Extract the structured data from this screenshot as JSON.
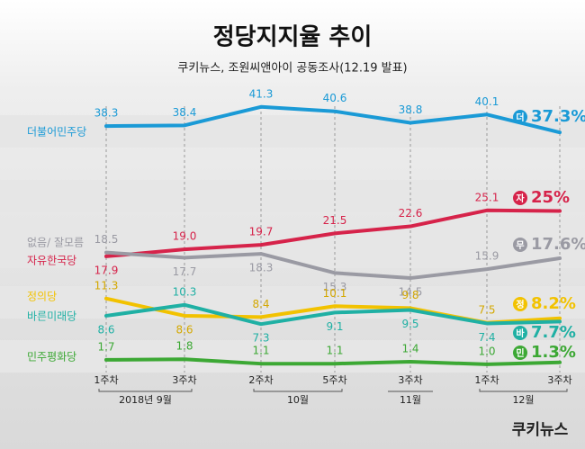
{
  "chart_data": {
    "type": "line",
    "title": "정당지지율 추이",
    "subtitle": "쿠키뉴스, 조원씨앤아이 공동조사(12.19 발표)",
    "categories": [
      "1주차",
      "3주차",
      "2주차",
      "5주차",
      "3주차",
      "1주차",
      "3주차"
    ],
    "months": [
      "2018년 9월",
      "10월",
      "11월",
      "12월"
    ],
    "ylim": [
      0,
      45
    ],
    "series": [
      {
        "name": "더불어민주당",
        "badge": "더",
        "color": "#1a9ad6",
        "values": [
          38.3,
          38.4,
          41.3,
          40.6,
          38.8,
          40.1,
          37.3
        ],
        "value_labels": [
          "38.3",
          "38.4",
          "41.3",
          "40.6",
          "38.8",
          "40.1",
          "37.3%"
        ]
      },
      {
        "name": "자유한국당",
        "badge": "자",
        "color": "#d6234a",
        "values": [
          17.9,
          19.0,
          19.7,
          21.5,
          22.6,
          25.1,
          25
        ],
        "value_labels": [
          "17.9",
          "19.0",
          "19.7",
          "21.5",
          "22.6",
          "25.1",
          "25%"
        ]
      },
      {
        "name": "없음/ 잘모름",
        "badge": "무",
        "color": "#9a9aa3",
        "values": [
          18.5,
          17.7,
          18.3,
          15.3,
          14.5,
          15.9,
          17.6
        ],
        "value_labels": [
          "18.5",
          "17.7",
          "18.3",
          "15.3",
          "14.5",
          "15.9",
          "17.6%"
        ]
      },
      {
        "name": "정의당",
        "badge": "정",
        "color": "#f2c200",
        "values": [
          11.3,
          8.6,
          8.4,
          10.1,
          9.8,
          7.5,
          8.2
        ],
        "value_labels": [
          "11.3",
          "8.6",
          "8.4",
          "10.1",
          "9.8",
          "7.5",
          "8.2%"
        ]
      },
      {
        "name": "바른미래당",
        "badge": "바",
        "color": "#1fb0a4",
        "values": [
          8.6,
          10.3,
          7.3,
          9.1,
          9.5,
          7.4,
          7.7
        ],
        "value_labels": [
          "8.6",
          "10.3",
          "7.3",
          "9.1",
          "9.5",
          "7.4",
          "7.7%"
        ]
      },
      {
        "name": "민주평화당",
        "badge": "민",
        "color": "#3ca834",
        "values": [
          1.7,
          1.8,
          1.1,
          1.1,
          1.4,
          1.0,
          1.3
        ],
        "value_labels": [
          "1.7",
          "1.8",
          "1.1",
          "1.1",
          "1.4",
          "1.0",
          "1.3%"
        ]
      }
    ],
    "logo": "쿠키뉴스"
  }
}
